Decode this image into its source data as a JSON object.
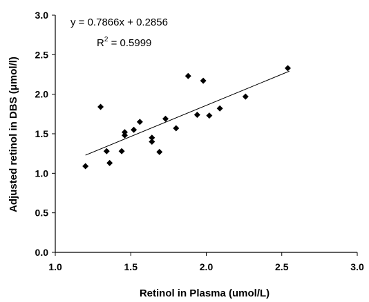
{
  "chart_data": {
    "type": "scatter",
    "xlabel": "Retinol in Plasma (umol/L)",
    "ylabel": "Adjusted retinol in DBS (μmol/l)",
    "xlim": [
      1.0,
      3.0
    ],
    "ylim": [
      0.0,
      3.0
    ],
    "x_ticks": [
      "1.0",
      "1.5",
      "2.0",
      "2.5",
      "3.0"
    ],
    "y_ticks": [
      "0.0",
      "0.5",
      "1.0",
      "1.5",
      "2.0",
      "2.5",
      "3.0"
    ],
    "x_tick_values": [
      1.0,
      1.5,
      2.0,
      2.5,
      3.0
    ],
    "y_tick_values": [
      0.0,
      0.5,
      1.0,
      1.5,
      2.0,
      2.5,
      3.0
    ],
    "grid": false,
    "legend": "none",
    "marker_color": "#000000",
    "marker_shape": "diamond",
    "points": [
      {
        "x": 1.2,
        "y": 1.09
      },
      {
        "x": 1.3,
        "y": 1.84
      },
      {
        "x": 1.34,
        "y": 1.28
      },
      {
        "x": 1.36,
        "y": 1.13
      },
      {
        "x": 1.44,
        "y": 1.28
      },
      {
        "x": 1.46,
        "y": 1.48
      },
      {
        "x": 1.46,
        "y": 1.52
      },
      {
        "x": 1.52,
        "y": 1.55
      },
      {
        "x": 1.56,
        "y": 1.65
      },
      {
        "x": 1.64,
        "y": 1.4
      },
      {
        "x": 1.64,
        "y": 1.45
      },
      {
        "x": 1.69,
        "y": 1.27
      },
      {
        "x": 1.73,
        "y": 1.69
      },
      {
        "x": 1.8,
        "y": 1.57
      },
      {
        "x": 1.88,
        "y": 2.23
      },
      {
        "x": 1.94,
        "y": 1.74
      },
      {
        "x": 1.98,
        "y": 2.17
      },
      {
        "x": 2.02,
        "y": 1.73
      },
      {
        "x": 2.09,
        "y": 1.82
      },
      {
        "x": 2.26,
        "y": 1.97
      },
      {
        "x": 2.54,
        "y": 2.33
      }
    ],
    "trendline": {
      "slope": 0.7866,
      "intercept": 0.2856,
      "x_range": [
        1.2,
        2.55
      ],
      "equation": "y = 0.7866x + 0.2856",
      "r2_label": "R",
      "r2_superscript": "2",
      "r2_value": " = 0.5999"
    }
  }
}
